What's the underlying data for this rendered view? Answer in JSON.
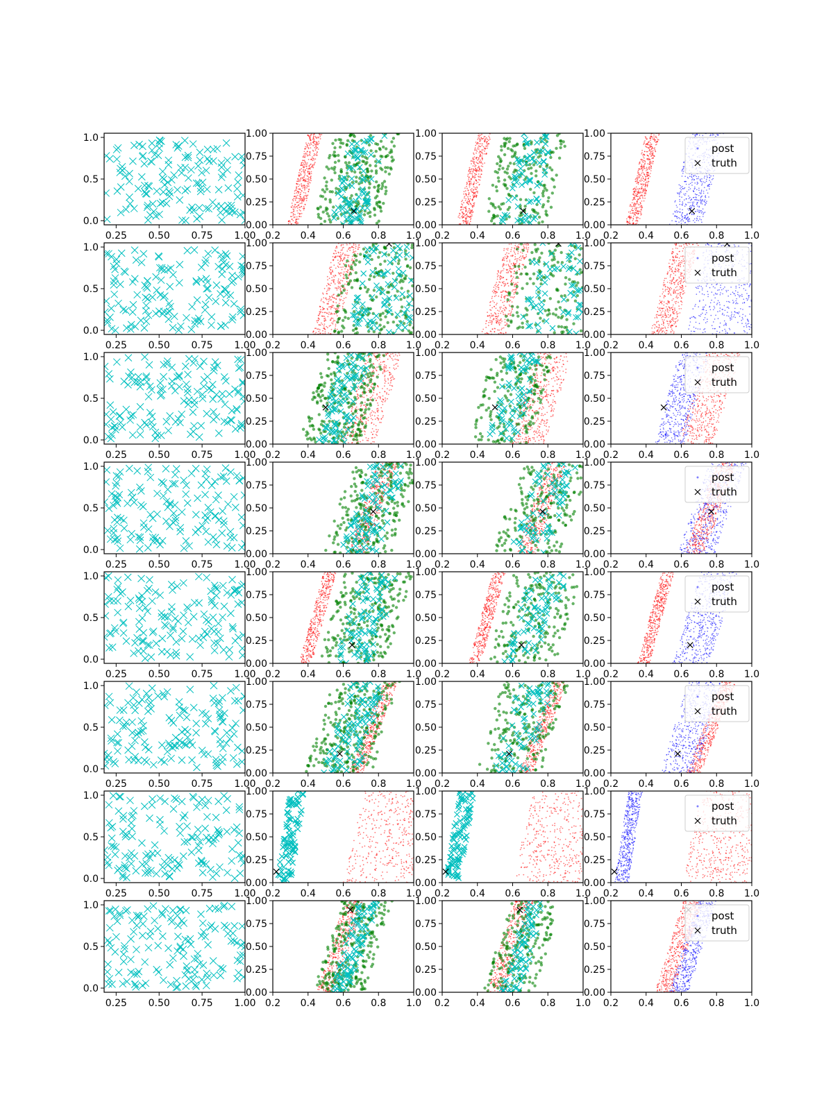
{
  "chart_data": {
    "type": "scatter",
    "layout": {
      "rows": 8,
      "cols": 4
    },
    "colors": {
      "cyan": "#00bfbf",
      "green": "#008000",
      "red": "#ff0000",
      "blue": "#0000ff",
      "truth": "#000000"
    },
    "column_axes": [
      {
        "xlim": [
          0.18,
          1.0
        ],
        "ylim": [
          -0.05,
          1.05
        ],
        "xticks": [
          "0.25",
          "0.50",
          "0.75",
          "1.00"
        ],
        "xtick_values": [
          0.25,
          0.5,
          0.75,
          1.0
        ],
        "yticks": [
          "0.0",
          "0.5",
          "1.0"
        ],
        "ytick_values": [
          0.0,
          0.5,
          1.0
        ]
      },
      {
        "xlim": [
          0.2,
          1.0
        ],
        "ylim": [
          0.0,
          1.0
        ],
        "xticks": [
          "0.2",
          "0.4",
          "0.6",
          "0.8",
          "1.0"
        ],
        "xtick_values": [
          0.2,
          0.4,
          0.6,
          0.8,
          1.0
        ],
        "yticks": [
          "0.00",
          "0.25",
          "0.50",
          "0.75",
          "1.00"
        ],
        "ytick_values": [
          0.0,
          0.25,
          0.5,
          0.75,
          1.0
        ]
      },
      {
        "xlim": [
          0.2,
          1.0
        ],
        "ylim": [
          0.0,
          1.0
        ],
        "xticks": [
          "0.2",
          "0.4",
          "0.6",
          "0.8",
          "1.0"
        ],
        "xtick_values": [
          0.2,
          0.4,
          0.6,
          0.8,
          1.0
        ],
        "yticks": [
          "0.00",
          "0.25",
          "0.50",
          "0.75",
          "1.00"
        ],
        "ytick_values": [
          0.0,
          0.25,
          0.5,
          0.75,
          1.0
        ]
      },
      {
        "xlim": [
          0.2,
          1.0
        ],
        "ylim": [
          0.0,
          1.0
        ],
        "xticks": [
          "0.2",
          "0.4",
          "0.6",
          "0.8",
          "1.0"
        ],
        "xtick_values": [
          0.2,
          0.4,
          0.6,
          0.8,
          1.0
        ],
        "yticks": [
          "0.00",
          "0.25",
          "0.50",
          "0.75",
          "1.00"
        ],
        "ytick_values": [
          0.0,
          0.25,
          0.5,
          0.75,
          1.0
        ]
      }
    ],
    "legend": {
      "entries": [
        "post",
        "truth"
      ],
      "placement": "upper-right",
      "column": 4
    },
    "rows": [
      {
        "truth": [
          0.66,
          0.15
        ],
        "red_band": {
          "x0": 0.28,
          "x1": 0.36,
          "slope": 0.12
        },
        "blue_band": {
          "x0": 0.53,
          "x1": 0.72,
          "slope": 0.12
        },
        "main_band": "green-cyan"
      },
      {
        "truth": [
          0.86,
          0.99
        ],
        "red_band": {
          "x0": 0.42,
          "x1": 0.56,
          "slope": 0.14
        },
        "blue_band": {
          "x0": 0.63,
          "x1": 1.0,
          "slope": 0.1
        },
        "main_band": "green-cyan"
      },
      {
        "truth": [
          0.5,
          0.4
        ],
        "red_band": {
          "x0": 0.58,
          "x1": 0.78,
          "slope": 0.16
        },
        "blue_band": {
          "x0": 0.45,
          "x1": 0.62,
          "slope": 0.14
        },
        "main_band": "green-cyan"
      },
      {
        "truth": [
          0.77,
          0.46
        ],
        "red_band": {
          "x0": 0.62,
          "x1": 0.73,
          "slope": 0.18
        },
        "blue_band": {
          "x0": 0.58,
          "x1": 0.79,
          "slope": 0.18
        },
        "main_band": "green-cyan"
      },
      {
        "truth": [
          0.65,
          0.2
        ],
        "red_band": {
          "x0": 0.35,
          "x1": 0.42,
          "slope": 0.14
        },
        "blue_band": {
          "x0": 0.55,
          "x1": 0.76,
          "slope": 0.16
        },
        "main_band": "green-cyan"
      },
      {
        "truth": [
          0.58,
          0.21
        ],
        "red_band": {
          "x0": 0.63,
          "x1": 0.71,
          "slope": 0.2
        },
        "blue_band": {
          "x0": 0.48,
          "x1": 0.68,
          "slope": 0.16
        },
        "main_band": "green-cyan"
      },
      {
        "truth": [
          0.22,
          0.12
        ],
        "red_band": {
          "x0": 0.6,
          "x1": 0.98,
          "slope": 0.12
        },
        "blue_band": {
          "x0": 0.22,
          "x1": 0.3,
          "slope": 0.08
        },
        "main_band": "cyan"
      },
      {
        "truth": [
          0.64,
          0.9
        ],
        "red_band": {
          "x0": 0.45,
          "x1": 0.56,
          "slope": 0.16
        },
        "blue_band": {
          "x0": 0.53,
          "x1": 0.64,
          "slope": 0.16
        },
        "main_band": "green-cyan"
      }
    ]
  }
}
